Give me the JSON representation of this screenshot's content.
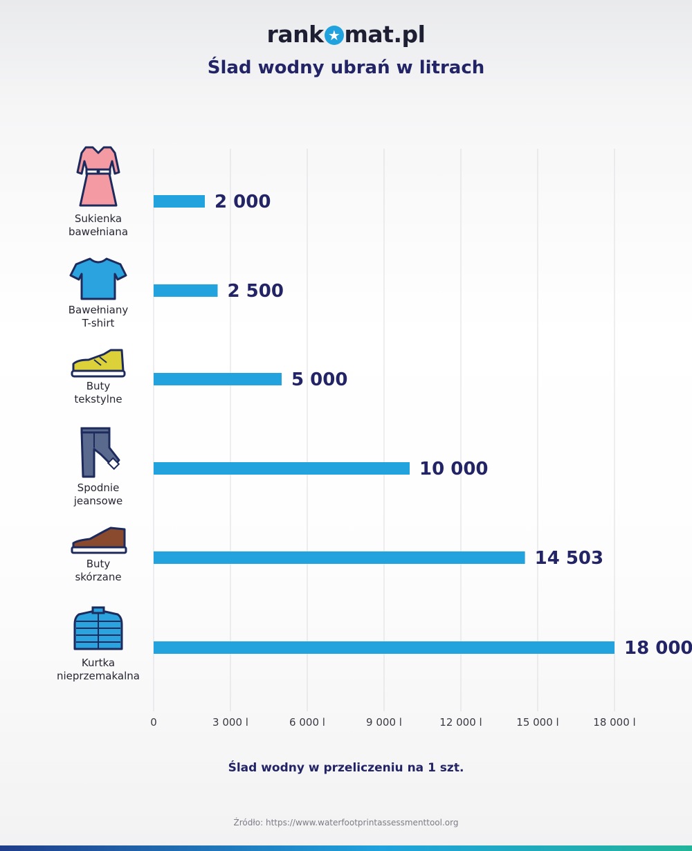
{
  "header": {
    "logo_left": "rank",
    "logo_right": "mat.pl",
    "title": "Ślad wodny ubrań w litrach"
  },
  "chart_data": {
    "type": "bar",
    "orientation": "horizontal",
    "categories": [
      "Sukienka bawełniana",
      "Bawełniany T-shirt",
      "Buty tekstylne",
      "Spodnie jeansowe",
      "Buty skórzane",
      "Kurtka nieprzemakalna"
    ],
    "category_lines": [
      [
        "Sukienka",
        "bawełniana"
      ],
      [
        "Bawełniany",
        "T-shirt"
      ],
      [
        "Buty",
        "tekstylne"
      ],
      [
        "Spodnie",
        "jeansowe"
      ],
      [
        "Buty",
        "skórzane"
      ],
      [
        "Kurtka",
        "nieprzemakalna"
      ]
    ],
    "values": [
      2000,
      2500,
      5000,
      10000,
      14503,
      18000
    ],
    "value_labels": [
      "2 000",
      "2 500",
      "5 000",
      "10 000",
      "14 503",
      "18 000"
    ],
    "icons": [
      "dress-icon",
      "tshirt-icon",
      "sneaker-icon",
      "jeans-icon",
      "leather-shoe-icon",
      "jacket-icon"
    ],
    "xlim": [
      0,
      18900
    ],
    "xticks": [
      0,
      3000,
      6000,
      9000,
      12000,
      15000,
      18000
    ],
    "xtick_labels": [
      "0",
      "3 000 l",
      "6 000 l",
      "9 000 l",
      "12 000 l",
      "15 000 l",
      "18 000 l"
    ],
    "xlabel": "Ślad wodny w przeliczeniu na 1 szt.",
    "grid": true,
    "bar_color": "#23a3de",
    "label_color": "#232466"
  },
  "footer": {
    "source": "Źródło: https://www.waterfootprintassessmenttool.org"
  },
  "colors": {
    "accent": "#1fa2de",
    "title": "#232466",
    "outline": "#1d2a5c"
  }
}
